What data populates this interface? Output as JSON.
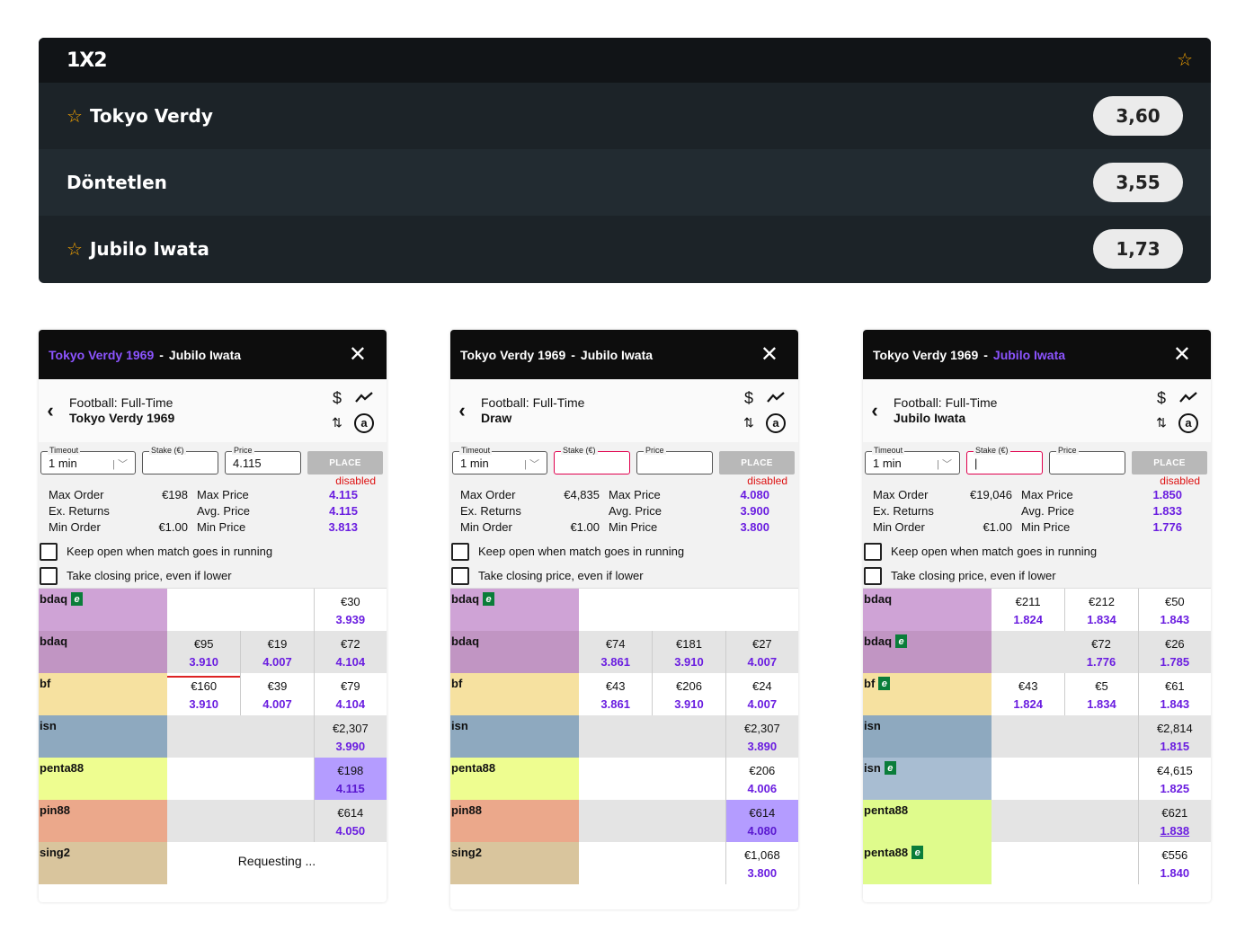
{
  "market": {
    "title": "1X2",
    "rows": [
      {
        "label": "Tokyo Verdy",
        "odds": "3,60",
        "starred": true
      },
      {
        "label": "Döntetlen",
        "odds": "3,55",
        "starred": false
      },
      {
        "label": "Jubilo Iwata",
        "odds": "1,73",
        "starred": true
      }
    ]
  },
  "colors": {
    "bdaq1": "#cfa3d6",
    "bdaq2": "#c195c3",
    "bf": "#f6e1a0",
    "isn1": "#8ea9bf",
    "isn2": "#a8bdd2",
    "penta88": "#eefd90",
    "penta88b": "#dffb8c",
    "pin88": "#eba88b",
    "sing2": "#d9c59d",
    "accent": "#6a1de0",
    "highlight": "#b49cff"
  },
  "cards": [
    {
      "home": "Tokyo Verdy 1969",
      "away": "Jubilo Iwata",
      "sep": "-",
      "selected_side": "home",
      "market_line": "Football: Full-Time",
      "selection": "Tokyo Verdy 1969",
      "timeout_label": "Timeout",
      "timeout_value": "1 min",
      "stake_label": "Stake (€)",
      "stake_value": "",
      "price_label": "Price",
      "price_value": "4.115",
      "place_label": "PLACE",
      "disabled_label": "disabled",
      "max_order_label": "Max Order",
      "max_order": "€198",
      "ex_returns_label": "Ex. Returns",
      "ex_returns": "",
      "min_order_label": "Min Order",
      "min_order": "€1.00",
      "max_price_label": "Max Price",
      "max_price": "4.115",
      "avg_price_label": "Avg. Price",
      "avg_price": "4.115",
      "min_price_label": "Min Price",
      "min_price": "3.813",
      "keep_open_label": "Keep open when match goes in running",
      "closing_label": "Take closing price, even if lower",
      "books": [
        {
          "name": "bdaq",
          "ex": true,
          "color": "bdaq1",
          "gray": false,
          "cells": [
            null,
            null,
            {
              "amt": "€30",
              "odd": "3.939"
            }
          ]
        },
        {
          "name": "bdaq",
          "ex": false,
          "color": "bdaq2",
          "gray": true,
          "cells": [
            {
              "amt": "€95",
              "odd": "3.910"
            },
            {
              "amt": "€19",
              "odd": "4.007"
            },
            {
              "amt": "€72",
              "odd": "4.104"
            }
          ]
        },
        {
          "name": "bf",
          "ex": false,
          "color": "bf",
          "gray": false,
          "cells": [
            {
              "amt": "€160",
              "odd": "3.910",
              "red": true
            },
            {
              "amt": "€39",
              "odd": "4.007"
            },
            {
              "amt": "€79",
              "odd": "4.104"
            }
          ]
        },
        {
          "name": "isn",
          "ex": false,
          "color": "isn1",
          "gray": true,
          "cells": [
            null,
            null,
            {
              "amt": "€2,307",
              "odd": "3.990"
            }
          ]
        },
        {
          "name": "penta88",
          "ex": false,
          "color": "penta88",
          "gray": false,
          "cells": [
            null,
            null,
            {
              "amt": "€198",
              "odd": "4.115",
              "hi": true
            }
          ]
        },
        {
          "name": "pin88",
          "ex": false,
          "color": "pin88",
          "gray": true,
          "cells": [
            null,
            null,
            {
              "amt": "€614",
              "odd": "4.050"
            }
          ]
        },
        {
          "name": "sing2",
          "ex": false,
          "color": "sing2",
          "gray": false,
          "requesting": "Requesting ...",
          "cells": [
            null,
            null,
            null
          ]
        }
      ]
    },
    {
      "home": "Tokyo Verdy 1969",
      "away": "Jubilo Iwata",
      "sep": "-",
      "selected_side": "none",
      "market_line": "Football: Full-Time",
      "selection": "Draw",
      "timeout_label": "Timeout",
      "timeout_value": "1 min",
      "stake_label": "Stake (€)",
      "stake_value": "",
      "price_label": "Price",
      "price_value": "",
      "place_label": "PLACE",
      "disabled_label": "disabled",
      "max_order_label": "Max Order",
      "max_order": "€4,835",
      "ex_returns_label": "Ex. Returns",
      "ex_returns": "",
      "min_order_label": "Min Order",
      "min_order": "€1.00",
      "max_price_label": "Max Price",
      "max_price": "4.080",
      "avg_price_label": "Avg. Price",
      "avg_price": "3.900",
      "min_price_label": "Min Price",
      "min_price": "3.800",
      "keep_open_label": "Keep open when match goes in running",
      "closing_label": "Take closing price, even if lower",
      "books": [
        {
          "name": "bdaq",
          "ex": true,
          "color": "bdaq1",
          "gray": false,
          "cells": [
            null,
            null,
            null
          ]
        },
        {
          "name": "bdaq",
          "ex": false,
          "color": "bdaq2",
          "gray": true,
          "cells": [
            {
              "amt": "€74",
              "odd": "3.861"
            },
            {
              "amt": "€181",
              "odd": "3.910"
            },
            {
              "amt": "€27",
              "odd": "4.007"
            }
          ]
        },
        {
          "name": "bf",
          "ex": false,
          "color": "bf",
          "gray": false,
          "cells": [
            {
              "amt": "€43",
              "odd": "3.861"
            },
            {
              "amt": "€206",
              "odd": "3.910"
            },
            {
              "amt": "€24",
              "odd": "4.007"
            }
          ]
        },
        {
          "name": "isn",
          "ex": false,
          "color": "isn1",
          "gray": true,
          "cells": [
            null,
            null,
            {
              "amt": "€2,307",
              "odd": "3.890"
            }
          ]
        },
        {
          "name": "penta88",
          "ex": false,
          "color": "penta88",
          "gray": false,
          "cells": [
            null,
            null,
            {
              "amt": "€206",
              "odd": "4.006"
            }
          ]
        },
        {
          "name": "pin88",
          "ex": false,
          "color": "pin88",
          "gray": true,
          "cells": [
            null,
            null,
            {
              "amt": "€614",
              "odd": "4.080",
              "hi": true
            }
          ]
        },
        {
          "name": "sing2",
          "ex": false,
          "color": "sing2",
          "gray": false,
          "cells": [
            null,
            null,
            {
              "amt": "€1,068",
              "odd": "3.800"
            }
          ]
        }
      ]
    },
    {
      "home": "Tokyo Verdy 1969",
      "away": "Jubilo Iwata",
      "sep": "-",
      "selected_side": "away",
      "market_line": "Football: Full-Time",
      "selection": "Jubilo Iwata",
      "timeout_label": "Timeout",
      "timeout_value": "1 min",
      "stake_label": "Stake (€)",
      "stake_value": "|",
      "price_label": "Price",
      "price_value": "",
      "place_label": "PLACE",
      "disabled_label": "disabled",
      "max_order_label": "Max Order",
      "max_order": "€19,046",
      "ex_returns_label": "Ex. Returns",
      "ex_returns": "",
      "min_order_label": "Min Order",
      "min_order": "€1.00",
      "max_price_label": "Max Price",
      "max_price": "1.850",
      "avg_price_label": "Avg. Price",
      "avg_price": "1.833",
      "min_price_label": "Min Price",
      "min_price": "1.776",
      "keep_open_label": "Keep open when match goes in running",
      "closing_label": "Take closing price, even if lower",
      "books": [
        {
          "name": "bdaq",
          "ex": false,
          "color": "bdaq1",
          "gray": false,
          "cells": [
            {
              "amt": "€211",
              "odd": "1.824"
            },
            {
              "amt": "€212",
              "odd": "1.834"
            },
            {
              "amt": "€50",
              "odd": "1.843"
            }
          ]
        },
        {
          "name": "bdaq",
          "ex": true,
          "color": "bdaq2",
          "gray": true,
          "cells": [
            null,
            {
              "amt": "€72",
              "odd": "1.776"
            },
            {
              "amt": "€26",
              "odd": "1.785"
            }
          ]
        },
        {
          "name": "bf",
          "ex": true,
          "color": "bf",
          "gray": false,
          "cells": [
            {
              "amt": "€43",
              "odd": "1.824"
            },
            {
              "amt": "€5",
              "odd": "1.834"
            },
            {
              "amt": "€61",
              "odd": "1.843"
            }
          ]
        },
        {
          "name": "isn",
          "ex": false,
          "color": "isn1",
          "gray": true,
          "cells": [
            null,
            null,
            {
              "amt": "€2,814",
              "odd": "1.815"
            }
          ]
        },
        {
          "name": "isn",
          "ex": true,
          "color": "isn2",
          "gray": false,
          "cells": [
            null,
            null,
            {
              "amt": "€4,615",
              "odd": "1.825"
            }
          ]
        },
        {
          "name": "penta88",
          "ex": false,
          "color": "penta88b",
          "gray": true,
          "cells": [
            null,
            null,
            {
              "amt": "€621",
              "odd": "1.838",
              "ul": true
            }
          ]
        },
        {
          "name": "penta88",
          "ex": true,
          "color": "penta88b",
          "gray": false,
          "cells": [
            null,
            null,
            {
              "amt": "€556",
              "odd": "1.840"
            }
          ]
        }
      ]
    }
  ]
}
